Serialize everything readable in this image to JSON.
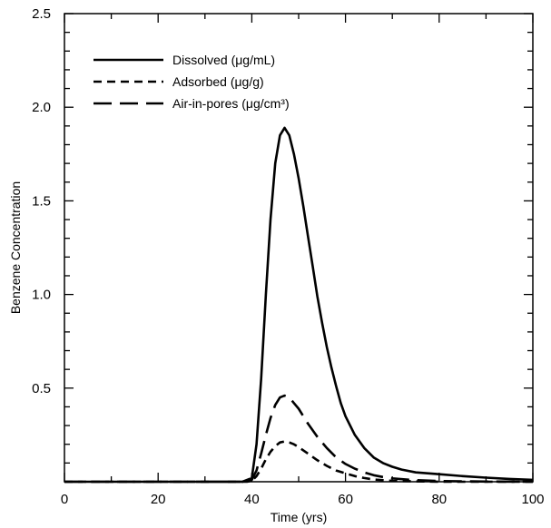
{
  "chart_data": {
    "type": "line",
    "xlabel": "Time (yrs)",
    "ylabel": "Benzene Concentration",
    "xlim": [
      0,
      100
    ],
    "ylim": [
      0,
      2.5
    ],
    "x_ticks": [
      0,
      20,
      40,
      60,
      80,
      100
    ],
    "x_tick_labels": [
      "0",
      "20",
      "40",
      "60",
      "80",
      "100"
    ],
    "y_ticks": [
      0.5,
      1.0,
      1.5,
      2.0,
      2.5
    ],
    "y_tick_labels": [
      "0.5",
      "1.0",
      "1.5",
      "2.0",
      "2.5"
    ],
    "grid": false,
    "legend_position": "top-left",
    "series": [
      {
        "name": "Dissolved (μg/mL)",
        "style": "solid",
        "x": [
          0,
          10,
          20,
          30,
          38,
          40,
          41,
          42,
          43,
          44,
          45,
          46,
          47,
          48,
          49,
          50,
          51,
          52,
          53,
          54,
          55,
          56,
          57,
          58,
          59,
          60,
          62,
          64,
          66,
          68,
          70,
          72,
          75,
          80,
          85,
          90,
          95,
          100
        ],
        "values": [
          0,
          0,
          0,
          0,
          0,
          0.02,
          0.2,
          0.55,
          1.0,
          1.4,
          1.7,
          1.85,
          1.89,
          1.85,
          1.75,
          1.62,
          1.47,
          1.31,
          1.15,
          0.99,
          0.85,
          0.72,
          0.61,
          0.51,
          0.42,
          0.35,
          0.25,
          0.18,
          0.13,
          0.1,
          0.08,
          0.065,
          0.05,
          0.04,
          0.03,
          0.022,
          0.015,
          0.01
        ]
      },
      {
        "name": "Adsorbed (μg/g)",
        "style": "short-dash",
        "x": [
          0,
          10,
          20,
          30,
          39,
          40,
          41,
          42,
          43,
          44,
          45,
          46,
          47,
          48,
          49,
          50,
          52,
          54,
          56,
          58,
          60,
          62,
          64,
          66,
          68,
          70,
          75,
          80,
          90,
          100
        ],
        "values": [
          0,
          0,
          0,
          0,
          0,
          0.005,
          0.03,
          0.07,
          0.12,
          0.16,
          0.19,
          0.21,
          0.215,
          0.21,
          0.2,
          0.185,
          0.15,
          0.115,
          0.085,
          0.06,
          0.045,
          0.03,
          0.02,
          0.012,
          0.008,
          0.005,
          0.002,
          0,
          0,
          0
        ]
      },
      {
        "name": "Air-in-pores (μg/cm³)",
        "style": "long-dash",
        "x": [
          0,
          10,
          20,
          30,
          39,
          40,
          41,
          42,
          43,
          44,
          45,
          46,
          47,
          48,
          49,
          50,
          52,
          54,
          56,
          58,
          60,
          62,
          64,
          66,
          68,
          70,
          75,
          80,
          90,
          100
        ],
        "values": [
          0,
          0,
          0,
          0,
          0,
          0.01,
          0.06,
          0.15,
          0.25,
          0.34,
          0.41,
          0.45,
          0.46,
          0.45,
          0.42,
          0.39,
          0.31,
          0.24,
          0.18,
          0.13,
          0.095,
          0.07,
          0.05,
          0.035,
          0.025,
          0.018,
          0.008,
          0.004,
          0.001,
          0
        ]
      }
    ]
  }
}
